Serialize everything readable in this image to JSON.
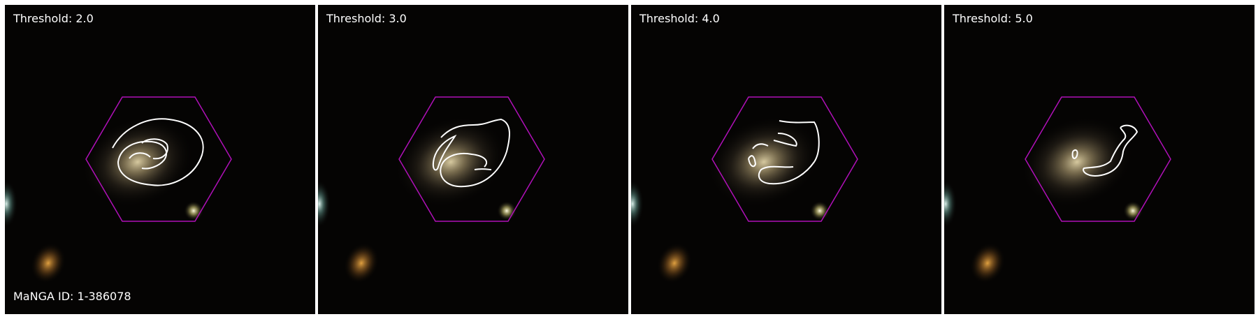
{
  "panels": [
    {
      "label": "Threshold: 2.0"
    },
    {
      "label": "Threshold: 3.0"
    },
    {
      "label": "Threshold: 4.0"
    },
    {
      "label": "Threshold: 5.0"
    }
  ],
  "manga_id": "MaNGA ID: 1-386078",
  "colors": {
    "background": "#050403",
    "hexagon": "#b010b8",
    "contour": "#ffffff",
    "galaxy_core": "#d8c9a0"
  }
}
